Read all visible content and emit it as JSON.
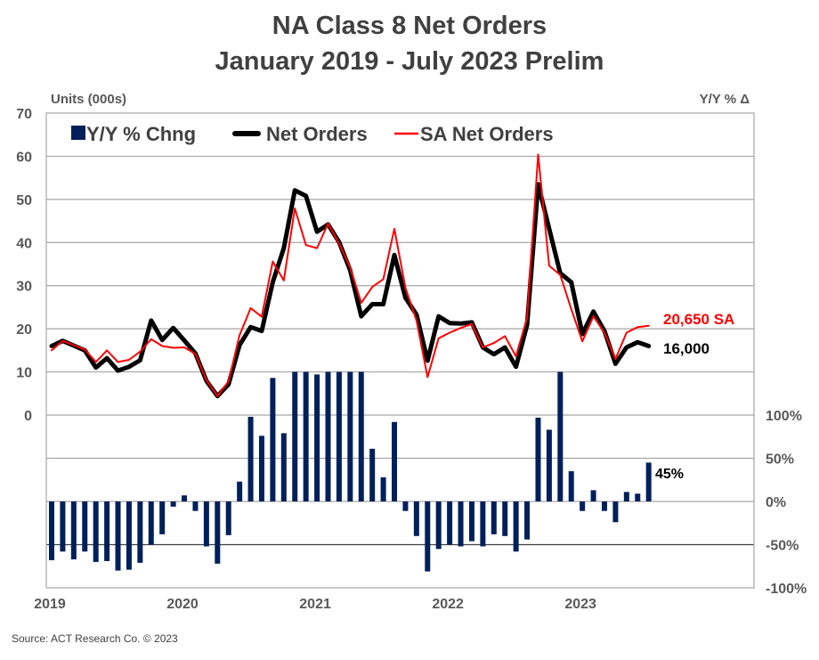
{
  "chart_data": {
    "type": "bar+line",
    "title": [
      "NA Class 8 Net Orders",
      "January 2019 - July 2023 Prelim"
    ],
    "left_axis": {
      "label": "Units (000s)",
      "range": [
        0,
        70
      ],
      "ticks": [
        "70",
        "60",
        "50",
        "40",
        "30",
        "20",
        "10",
        "0"
      ]
    },
    "right_axis": {
      "label": "Y/Y % Δ",
      "range": [
        -100,
        150
      ],
      "ticks": [
        "100%",
        "50%",
        "0%",
        "-50%",
        "-100%"
      ],
      "tick_values": [
        100,
        50,
        0,
        -50,
        -100
      ]
    },
    "x_axis": {
      "ticks": [
        "2019",
        "2020",
        "2021",
        "2022",
        "2023"
      ],
      "start": "2019-01",
      "end": "2023-07",
      "frequency": "monthly"
    },
    "grid": true,
    "legend_placement": "top-left",
    "colors": {
      "yy_bars": "#00205B",
      "net_orders": "#000000",
      "sa_net_orders": "#FF0000"
    },
    "series": [
      {
        "name": "Y/Y % Chng",
        "type": "bar",
        "axis": "right",
        "display_cap": 150,
        "values": [
          -68,
          -58,
          -67,
          -58,
          -70,
          -69,
          -80,
          -79,
          -71,
          -50,
          -38,
          -6,
          7,
          -11,
          -52,
          -72,
          -39,
          23,
          98,
          76,
          143,
          79,
          150,
          150,
          147,
          150,
          150,
          150,
          150,
          61,
          28,
          92,
          -11,
          -40,
          -81,
          -55,
          -50,
          -52,
          -46,
          -52,
          -38,
          -40,
          -58,
          -44,
          97,
          83,
          150,
          35,
          -11,
          13,
          -11,
          -24,
          11,
          9,
          45
        ]
      },
      {
        "name": "Net Orders",
        "type": "line",
        "axis": "left",
        "values": [
          16.0,
          17.2,
          16.1,
          15.0,
          11.0,
          13.2,
          10.3,
          11.2,
          12.7,
          21.9,
          17.4,
          20.2,
          17.3,
          14.3,
          7.9,
          4.4,
          7.1,
          16.2,
          20.4,
          19.5,
          30.8,
          38.7,
          52.1,
          50.8,
          42.5,
          44.2,
          40.1,
          33.6,
          22.9,
          25.7,
          25.7,
          37.1,
          27.2,
          23.3,
          12.6,
          22.9,
          21.3,
          21.2,
          21.5,
          15.7,
          14.1,
          15.7,
          11.2,
          20.9,
          53.5,
          43.2,
          32.9,
          30.8,
          18.8,
          24.0,
          19.5,
          11.9,
          15.7,
          16.9,
          16.0
        ]
      },
      {
        "name": "SA Net Orders",
        "type": "line",
        "axis": "left",
        "values": [
          15.0,
          17.2,
          16.2,
          15.2,
          12.3,
          15.0,
          12.3,
          12.8,
          14.7,
          17.6,
          16.0,
          15.6,
          15.7,
          14.2,
          8.1,
          4.4,
          7.8,
          18.5,
          24.8,
          22.8,
          35.6,
          31.2,
          47.9,
          39.4,
          38.7,
          44.4,
          39.8,
          34.3,
          26.0,
          29.7,
          31.5,
          43.2,
          29.5,
          21.9,
          8.8,
          17.8,
          19.1,
          20.2,
          21.1,
          15.7,
          16.7,
          18.3,
          13.6,
          22.6,
          60.4,
          34.6,
          32.5,
          24.6,
          17.1,
          22.9,
          19.1,
          13.0,
          19.1,
          20.4,
          20.7
        ]
      }
    ],
    "annotations": {
      "sa_last": "20,650 SA",
      "net_last": "16,000",
      "yy_last": "45%"
    },
    "source": "Source: ACT Research Co. © 2023"
  }
}
